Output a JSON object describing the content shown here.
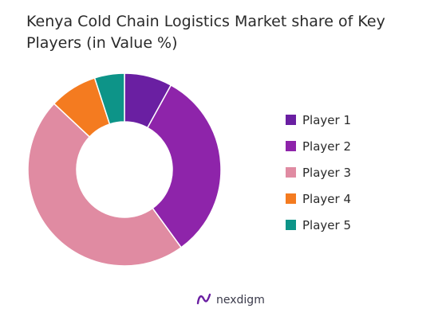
{
  "chart_data": {
    "type": "pie",
    "title": "Kenya Cold Chain Logistics Market share of Key Players (in Value %)",
    "donut": true,
    "start_angle_deg": 0,
    "legend_position": "right",
    "categories": [
      "Player 1",
      "Player 2",
      "Player 3",
      "Player 4",
      "Player 5"
    ],
    "values": [
      8,
      32,
      47,
      8,
      5
    ],
    "colors": [
      "#6a1fa2",
      "#8e24aa",
      "#e08ba2",
      "#f47b20",
      "#0d9488"
    ],
    "series": [
      {
        "name": "Player 1",
        "value": 8,
        "color": "#6a1fa2"
      },
      {
        "name": "Player 2",
        "value": 32,
        "color": "#8e24aa"
      },
      {
        "name": "Player 3",
        "value": 47,
        "color": "#e08ba2"
      },
      {
        "name": "Player 4",
        "value": 8,
        "color": "#f47b20"
      },
      {
        "name": "Player 5",
        "value": 5,
        "color": "#0d9488"
      }
    ]
  },
  "brand": {
    "name": "nexdigm",
    "icon": "nexdigm-logo-icon",
    "color": "#6a1fa2"
  }
}
